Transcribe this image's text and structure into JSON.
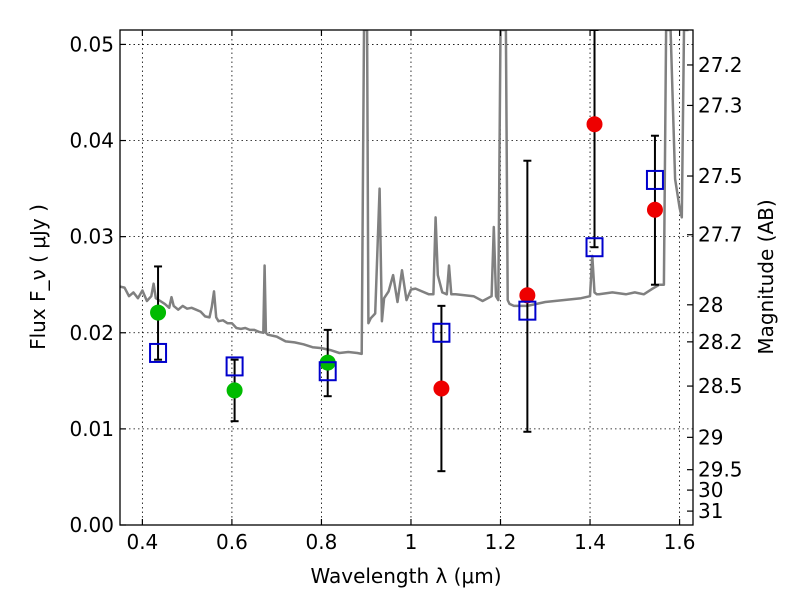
{
  "chart_data": {
    "type": "scatter",
    "xlabel": "Wavelength  λ (μm)",
    "ylabel": "Flux  F_ν  ( μJy )",
    "y2label": "Magnitude (AB)",
    "xlim": [
      0.35,
      1.63
    ],
    "ylim": [
      0.0,
      0.0515
    ],
    "x_ticks": [
      "0.4",
      "0.6",
      "0.8",
      "1",
      "1.2",
      "1.4",
      "1.6"
    ],
    "x_tick_values": [
      0.4,
      0.6,
      0.8,
      1.0,
      1.2,
      1.4,
      1.6
    ],
    "y_ticks": [
      "0.00",
      "0.01",
      "0.02",
      "0.03",
      "0.04",
      "0.05"
    ],
    "y_tick_values": [
      0.0,
      0.01,
      0.02,
      0.03,
      0.04,
      0.05
    ],
    "mag_ticks": [
      "27.2",
      "27.3",
      "27.5",
      "27.7",
      "28",
      "28.2",
      "28.5",
      "29",
      "29.5",
      "30",
      "31"
    ],
    "mag_tick_values": [
      27.2,
      27.3,
      27.5,
      27.7,
      28.0,
      28.2,
      28.5,
      29.0,
      29.5,
      30.0,
      31.0
    ],
    "grid": true,
    "series": [
      {
        "marker": "circle",
        "color": "#00bb00",
        "points": [
          {
            "x": 0.435,
            "y": 0.0221,
            "err_low": 0.0172,
            "err_high": 0.0269
          },
          {
            "x": 0.606,
            "y": 0.014,
            "err_low": 0.0108,
            "err_high": 0.0172
          },
          {
            "x": 0.814,
            "y": 0.0169,
            "err_low": 0.0134,
            "err_high": 0.0203
          }
        ]
      },
      {
        "marker": "circle",
        "color": "#ee0000",
        "points": [
          {
            "x": 1.068,
            "y": 0.0142,
            "err_low": 0.0056,
            "err_high": 0.0228
          },
          {
            "x": 1.26,
            "y": 0.0239,
            "err_low": 0.0097,
            "err_high": 0.0379
          },
          {
            "x": 1.41,
            "y": 0.0417,
            "err_low": 0.0289,
            "err_high": 0.0515
          },
          {
            "x": 1.545,
            "y": 0.0328,
            "err_low": 0.025,
            "err_high": 0.0405
          }
        ]
      },
      {
        "marker": "open-square",
        "color": "#0000cc",
        "points": [
          {
            "x": 0.435,
            "y": 0.0179
          },
          {
            "x": 0.606,
            "y": 0.0165
          },
          {
            "x": 0.814,
            "y": 0.016
          },
          {
            "x": 1.068,
            "y": 0.02
          },
          {
            "x": 1.26,
            "y": 0.0223
          },
          {
            "x": 1.41,
            "y": 0.0289
          },
          {
            "x": 1.545,
            "y": 0.0359
          }
        ]
      }
    ],
    "model_spectrum": {
      "color": "#808080",
      "x": [
        0.35,
        0.36,
        0.37,
        0.38,
        0.39,
        0.4,
        0.41,
        0.42,
        0.425,
        0.43,
        0.44,
        0.45,
        0.46,
        0.465,
        0.47,
        0.48,
        0.49,
        0.5,
        0.51,
        0.52,
        0.53,
        0.54,
        0.55,
        0.555,
        0.56,
        0.565,
        0.57,
        0.58,
        0.59,
        0.6,
        0.61,
        0.62,
        0.63,
        0.64,
        0.65,
        0.66,
        0.67,
        0.673,
        0.676,
        0.68,
        0.7,
        0.72,
        0.74,
        0.76,
        0.78,
        0.8,
        0.82,
        0.84,
        0.86,
        0.88,
        0.89,
        0.895,
        0.898,
        0.902,
        0.905,
        0.91,
        0.92,
        0.93,
        0.935,
        0.94,
        0.95,
        0.96,
        0.97,
        0.98,
        0.99,
        1.0,
        1.01,
        1.04,
        1.05,
        1.055,
        1.06,
        1.07,
        1.08,
        1.085,
        1.09,
        1.1,
        1.14,
        1.16,
        1.18,
        1.185,
        1.19,
        1.195,
        1.2,
        1.204,
        1.208,
        1.212,
        1.216,
        1.22,
        1.23,
        1.26,
        1.3,
        1.34,
        1.38,
        1.4,
        1.405,
        1.41,
        1.415,
        1.42,
        1.45,
        1.48,
        1.5,
        1.52,
        1.54,
        1.555,
        1.565,
        1.57,
        1.575,
        1.58,
        1.59,
        1.6,
        1.605,
        1.61,
        1.615,
        1.62
      ],
      "y": [
        0.0248,
        0.0247,
        0.0238,
        0.0242,
        0.0236,
        0.0244,
        0.0233,
        0.0238,
        0.0251,
        0.0236,
        0.0233,
        0.023,
        0.0226,
        0.0237,
        0.0228,
        0.0224,
        0.0228,
        0.0225,
        0.0226,
        0.0224,
        0.0222,
        0.0217,
        0.0216,
        0.0227,
        0.0243,
        0.0216,
        0.0212,
        0.0213,
        0.021,
        0.021,
        0.0205,
        0.0204,
        0.0205,
        0.0203,
        0.0203,
        0.0201,
        0.02,
        0.027,
        0.02,
        0.0198,
        0.0196,
        0.0191,
        0.019,
        0.0188,
        0.0185,
        0.0184,
        0.0182,
        0.0179,
        0.018,
        0.0179,
        0.0178,
        0.0515,
        0.0515,
        0.0515,
        0.021,
        0.0215,
        0.022,
        0.035,
        0.0212,
        0.0236,
        0.0243,
        0.026,
        0.0232,
        0.0265,
        0.0234,
        0.0245,
        0.0246,
        0.024,
        0.024,
        0.032,
        0.026,
        0.0242,
        0.024,
        0.027,
        0.024,
        0.024,
        0.0238,
        0.0233,
        0.0238,
        0.031,
        0.0238,
        0.0234,
        0.0515,
        0.0515,
        0.0515,
        0.0515,
        0.0234,
        0.023,
        0.0228,
        0.0228,
        0.0232,
        0.0234,
        0.0236,
        0.0238,
        0.028,
        0.0242,
        0.024,
        0.024,
        0.0242,
        0.024,
        0.0242,
        0.024,
        0.0246,
        0.025,
        0.025,
        0.0515,
        0.0515,
        0.0515,
        0.036,
        0.033,
        0.032,
        0.0515,
        0.0515,
        0.0515
      ]
    }
  }
}
